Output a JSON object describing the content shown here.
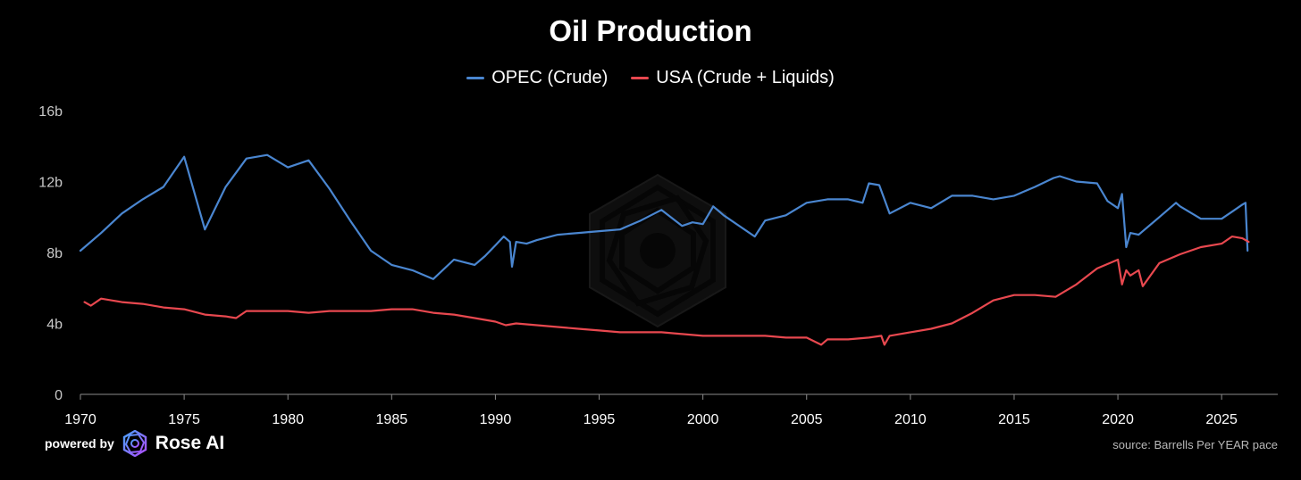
{
  "chart_data": {
    "type": "line",
    "title": "Oil Production",
    "xlabel": "",
    "ylabel": "",
    "xlim": [
      1970,
      2026.5
    ],
    "ylim": [
      0,
      16
    ],
    "y_ticks": [
      "0",
      "4b",
      "8b",
      "12b",
      "16b"
    ],
    "y_tick_values": [
      0,
      4,
      8,
      12,
      16
    ],
    "x_ticks": [
      "1970",
      "1975",
      "1980",
      "1985",
      "1990",
      "1995",
      "2000",
      "2005",
      "2010",
      "2015",
      "2020",
      "2025"
    ],
    "x_tick_values": [
      1970,
      1975,
      1980,
      1985,
      1990,
      1995,
      2000,
      2005,
      2010,
      2015,
      2020,
      2025
    ],
    "grid": false,
    "legend_position": "top-center",
    "series": [
      {
        "name": "OPEC (Crude)",
        "color": "#4a86d0",
        "x": [
          1970,
          1971,
          1972,
          1973,
          1974,
          1975,
          1976,
          1977,
          1978,
          1979,
          1980,
          1981,
          1982,
          1983,
          1984,
          1985,
          1986,
          1987,
          1988,
          1989,
          1989.5,
          1990,
          1990.4,
          1990.7,
          1990.8,
          1991,
          1991.5,
          1992,
          1993,
          1994,
          1995,
          1996,
          1997,
          1998,
          1999,
          1999.5,
          2000,
          2000.5,
          2001,
          2002,
          2002.5,
          2003,
          2004,
          2005,
          2006,
          2007,
          2007.7,
          2008,
          2008.5,
          2009,
          2010,
          2011,
          2012,
          2013,
          2014,
          2015,
          2016,
          2016.9,
          2017.2,
          2018,
          2019,
          2019.5,
          2020,
          2020.2,
          2020.4,
          2020.6,
          2021,
          2022,
          2022.8,
          2023,
          2024,
          2025,
          2025.5,
          2026,
          2026.15,
          2026.25
        ],
        "y": [
          8.1,
          9.1,
          10.2,
          11.0,
          11.7,
          13.4,
          9.3,
          11.7,
          13.3,
          13.5,
          12.8,
          13.2,
          11.6,
          9.8,
          8.1,
          7.3,
          7.0,
          6.5,
          7.6,
          7.3,
          7.8,
          8.4,
          8.9,
          8.6,
          7.2,
          8.6,
          8.5,
          8.7,
          9.0,
          9.1,
          9.2,
          9.3,
          9.8,
          10.4,
          9.5,
          9.7,
          9.6,
          10.6,
          10.1,
          9.3,
          8.9,
          9.8,
          10.1,
          10.8,
          11.0,
          11.0,
          10.8,
          11.9,
          11.8,
          10.2,
          10.8,
          10.5,
          11.2,
          11.2,
          11.0,
          11.2,
          11.7,
          12.2,
          12.3,
          12.0,
          11.9,
          10.9,
          10.5,
          11.3,
          8.3,
          9.1,
          9.0,
          10.0,
          10.8,
          10.6,
          9.9,
          9.9,
          10.3,
          10.7,
          10.8,
          8.1
        ]
      },
      {
        "name": "USA (Crude + Liquids)",
        "color": "#e8484f",
        "x": [
          1970.2,
          1970.5,
          1971,
          1972,
          1973,
          1974,
          1975,
          1976,
          1977,
          1977.5,
          1978,
          1979,
          1980,
          1981,
          1982,
          1983,
          1984,
          1985,
          1986,
          1987,
          1988,
          1989,
          1990,
          1990.5,
          1991,
          1992,
          1993,
          1994,
          1995,
          1996,
          1997,
          1998,
          1999,
          2000,
          2001,
          2002,
          2003,
          2004,
          2005,
          2005.7,
          2006,
          2007,
          2008,
          2008.6,
          2008.75,
          2009,
          2010,
          2011,
          2012,
          2013,
          2014,
          2015,
          2016,
          2017,
          2018,
          2019,
          2020,
          2020.2,
          2020.4,
          2020.6,
          2021,
          2021.2,
          2022,
          2023,
          2024,
          2025,
          2025.5,
          2026,
          2026.3
        ],
        "y": [
          5.2,
          5.0,
          5.4,
          5.2,
          5.1,
          4.9,
          4.8,
          4.5,
          4.4,
          4.3,
          4.7,
          4.7,
          4.7,
          4.6,
          4.7,
          4.7,
          4.7,
          4.8,
          4.8,
          4.6,
          4.5,
          4.3,
          4.1,
          3.9,
          4.0,
          3.9,
          3.8,
          3.7,
          3.6,
          3.5,
          3.5,
          3.5,
          3.4,
          3.3,
          3.3,
          3.3,
          3.3,
          3.2,
          3.2,
          2.8,
          3.1,
          3.1,
          3.2,
          3.3,
          2.8,
          3.3,
          3.5,
          3.7,
          4.0,
          4.6,
          5.3,
          5.6,
          5.6,
          5.5,
          6.2,
          7.1,
          7.6,
          6.2,
          7.0,
          6.7,
          7.0,
          6.1,
          7.4,
          7.9,
          8.3,
          8.5,
          8.9,
          8.8,
          8.6
        ]
      }
    ]
  },
  "footer": {
    "powered_by": "powered by",
    "brand": "Rose AI",
    "source": "source: Barrells Per YEAR pace"
  }
}
